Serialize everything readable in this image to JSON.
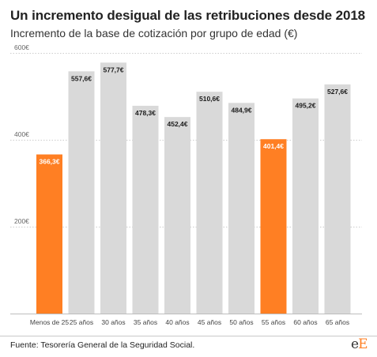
{
  "header": {
    "title": "Un incremento desigual de las retribuciones desde 2018",
    "subtitle": "Incremento de la base de cotización por grupo de edad (€)"
  },
  "footer": {
    "source": "Fuente: Tesorería General de la Seguridad Social.",
    "logo": "eE"
  },
  "colors": {
    "highlight": "#ff7f23",
    "default": "#d9d9d9",
    "gridline": "#cccccc",
    "label_text": "#1a1a1a",
    "highlight_label_text": "#ffffff"
  },
  "chart_data": {
    "type": "bar",
    "categories": [
      "Menos de 25",
      "25 años",
      "30 años",
      "35 años",
      "40 años",
      "45 años",
      "50 años",
      "55 años",
      "60 años",
      "65 años"
    ],
    "values": [
      366.3,
      557.6,
      577.7,
      478.3,
      452.4,
      510.6,
      484.9,
      401.4,
      495.2,
      527.6
    ],
    "value_labels": [
      "366,3€",
      "557,6€",
      "577,7€",
      "478,3€",
      "452,4€",
      "510,6€",
      "484,9€",
      "401,4€",
      "495,2€",
      "527,6€"
    ],
    "highlighted": [
      true,
      false,
      false,
      false,
      false,
      false,
      false,
      true,
      false,
      false
    ],
    "yticks": [
      200,
      400,
      600
    ],
    "ytick_labels": [
      "200€",
      "400€",
      "600€"
    ],
    "ylim": [
      0,
      600
    ],
    "grid": true,
    "xlabel": "",
    "ylabel": ""
  }
}
